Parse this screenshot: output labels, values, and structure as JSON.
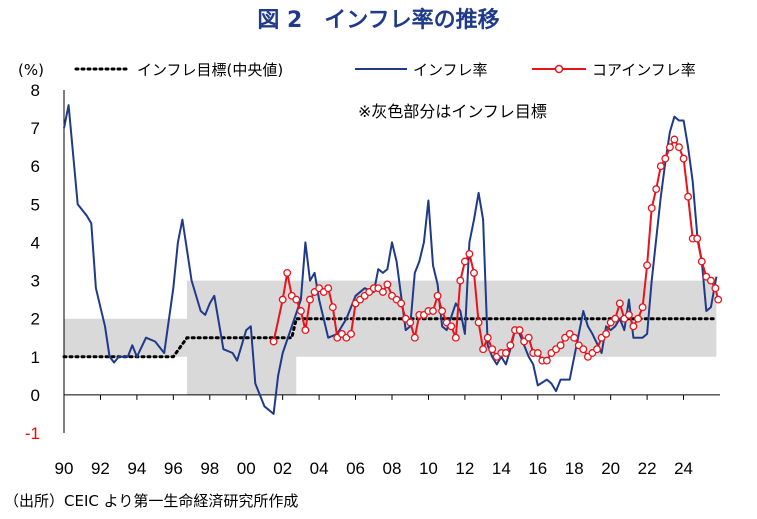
{
  "title": "図 2　インフレ率の推移",
  "source": "（出所）CEIC より第一生命経済研究所作成",
  "chart_data": {
    "type": "line",
    "title": "図 2　インフレ率の推移",
    "ylabel": "(%)",
    "ylim": [
      -1,
      8
    ],
    "yticks": [
      -1,
      0,
      1,
      2,
      3,
      4,
      5,
      6,
      7,
      8
    ],
    "xlim": [
      1990,
      2026
    ],
    "xtick_values": [
      1990,
      1992,
      1994,
      1996,
      1998,
      2000,
      2002,
      2004,
      2006,
      2008,
      2010,
      2012,
      2014,
      2016,
      2018,
      2020,
      2022,
      2024
    ],
    "xtick_labels": [
      "90",
      "92",
      "94",
      "96",
      "98",
      "00",
      "02",
      "04",
      "06",
      "08",
      "10",
      "12",
      "14",
      "16",
      "18",
      "20",
      "22",
      "24"
    ],
    "annotation": "※灰色部分はインフレ目標",
    "legend_position": "top",
    "colors": {
      "target": "#000000",
      "inflation": "#1f3a8a",
      "core": "#e8141b",
      "band": "#d9d9d9"
    },
    "target_band": [
      {
        "x": 1990.0,
        "low": 1,
        "high": 2
      },
      {
        "x": 1996.75,
        "low": 1,
        "high": 2
      },
      {
        "x": 1996.75,
        "low": 0,
        "high": 3
      },
      {
        "x": 2002.75,
        "low": 0,
        "high": 3
      },
      {
        "x": 2002.75,
        "low": 1,
        "high": 3
      },
      {
        "x": 2025.8,
        "low": 1,
        "high": 3
      }
    ],
    "series": [
      {
        "name": "インフレ目標(中央値)",
        "style": "dotted",
        "points": [
          [
            1990.0,
            1.0
          ],
          [
            1996.0,
            1.0
          ],
          [
            1996.75,
            1.5
          ],
          [
            2002.5,
            1.5
          ],
          [
            2002.75,
            2.0
          ],
          [
            2025.8,
            2.0
          ]
        ]
      },
      {
        "name": "インフレ率",
        "style": "line",
        "points": [
          [
            1990.0,
            7.0
          ],
          [
            1990.25,
            7.6
          ],
          [
            1990.75,
            5.0
          ],
          [
            1991.25,
            4.7
          ],
          [
            1991.5,
            4.5
          ],
          [
            1991.75,
            2.8
          ],
          [
            1992.25,
            1.8
          ],
          [
            1992.5,
            1.0
          ],
          [
            1992.75,
            0.85
          ],
          [
            1993.0,
            1.0
          ],
          [
            1993.5,
            1.0
          ],
          [
            1993.75,
            1.3
          ],
          [
            1994.0,
            1.0
          ],
          [
            1994.5,
            1.5
          ],
          [
            1995.0,
            1.4
          ],
          [
            1995.5,
            1.1
          ],
          [
            1996.0,
            2.8
          ],
          [
            1996.25,
            4.0
          ],
          [
            1996.5,
            4.6
          ],
          [
            1996.75,
            3.8
          ],
          [
            1997.0,
            3.0
          ],
          [
            1997.5,
            2.2
          ],
          [
            1997.75,
            2.1
          ],
          [
            1998.0,
            2.4
          ],
          [
            1998.25,
            2.6
          ],
          [
            1998.75,
            1.2
          ],
          [
            1999.25,
            1.1
          ],
          [
            1999.5,
            0.9
          ],
          [
            2000.0,
            1.7
          ],
          [
            2000.25,
            1.8
          ],
          [
            2000.5,
            0.3
          ],
          [
            2001.0,
            -0.3
          ],
          [
            2001.5,
            -0.5
          ],
          [
            2001.75,
            0.5
          ],
          [
            2002.0,
            1.1
          ],
          [
            2002.5,
            1.8
          ],
          [
            2003.0,
            2.5
          ],
          [
            2003.25,
            4.0
          ],
          [
            2003.5,
            3.0
          ],
          [
            2003.75,
            3.2
          ],
          [
            2004.0,
            2.5
          ],
          [
            2004.5,
            1.5
          ],
          [
            2005.0,
            1.6
          ],
          [
            2005.5,
            2.0
          ],
          [
            2006.0,
            2.6
          ],
          [
            2006.5,
            2.8
          ],
          [
            2007.0,
            2.7
          ],
          [
            2007.25,
            3.3
          ],
          [
            2007.5,
            3.2
          ],
          [
            2007.75,
            3.3
          ],
          [
            2008.0,
            4.0
          ],
          [
            2008.25,
            3.5
          ],
          [
            2008.5,
            2.6
          ],
          [
            2008.75,
            1.7
          ],
          [
            2009.0,
            1.8
          ],
          [
            2009.25,
            3.2
          ],
          [
            2009.5,
            3.5
          ],
          [
            2009.75,
            4.0
          ],
          [
            2010.0,
            5.1
          ],
          [
            2010.25,
            3.4
          ],
          [
            2010.5,
            2.9
          ],
          [
            2010.75,
            1.8
          ],
          [
            2011.0,
            1.7
          ],
          [
            2011.5,
            2.4
          ],
          [
            2011.75,
            2.2
          ],
          [
            2012.0,
            1.6
          ],
          [
            2012.25,
            4.0
          ],
          [
            2012.5,
            4.6
          ],
          [
            2012.75,
            5.3
          ],
          [
            2013.0,
            4.6
          ],
          [
            2013.25,
            1.3
          ],
          [
            2013.5,
            1.0
          ],
          [
            2013.75,
            0.8
          ],
          [
            2014.0,
            1.0
          ],
          [
            2014.25,
            0.8
          ],
          [
            2014.5,
            1.2
          ],
          [
            2014.75,
            1.7
          ],
          [
            2015.0,
            1.6
          ],
          [
            2015.5,
            1.0
          ],
          [
            2015.75,
            0.8
          ],
          [
            2016.0,
            0.25
          ],
          [
            2016.5,
            0.4
          ],
          [
            2016.75,
            0.3
          ],
          [
            2017.0,
            0.1
          ],
          [
            2017.25,
            0.4
          ],
          [
            2017.75,
            0.4
          ],
          [
            2018.25,
            1.6
          ],
          [
            2018.5,
            2.2
          ],
          [
            2018.75,
            1.8
          ],
          [
            2019.0,
            1.6
          ],
          [
            2019.5,
            1.1
          ],
          [
            2019.75,
            1.8
          ],
          [
            2020.0,
            1.7
          ],
          [
            2020.25,
            1.8
          ],
          [
            2020.5,
            2.0
          ],
          [
            2020.75,
            1.7
          ],
          [
            2021.0,
            2.5
          ],
          [
            2021.25,
            1.5
          ],
          [
            2021.5,
            1.5
          ],
          [
            2021.75,
            1.5
          ],
          [
            2022.0,
            1.6
          ],
          [
            2022.25,
            3.0
          ],
          [
            2022.75,
            5.2
          ],
          [
            2023.0,
            6.1
          ],
          [
            2023.25,
            6.9
          ],
          [
            2023.5,
            7.3
          ],
          [
            2023.75,
            7.2
          ],
          [
            2024.0,
            7.2
          ],
          [
            2024.25,
            6.5
          ],
          [
            2024.5,
            5.6
          ],
          [
            2024.75,
            4.2
          ],
          [
            2025.0,
            3.5
          ],
          [
            2025.25,
            2.2
          ],
          [
            2025.5,
            2.3
          ],
          [
            2025.8,
            3.1
          ]
        ]
      },
      {
        "name": "コアインフレ率",
        "style": "line-markers",
        "points": [
          [
            2001.5,
            1.4
          ],
          [
            2002.0,
            2.5
          ],
          [
            2002.25,
            3.2
          ],
          [
            2002.5,
            2.6
          ],
          [
            2002.75,
            2.5
          ],
          [
            2003.0,
            2.2
          ],
          [
            2003.25,
            1.7
          ],
          [
            2003.5,
            2.5
          ],
          [
            2003.75,
            2.7
          ],
          [
            2004.0,
            2.8
          ],
          [
            2004.25,
            2.7
          ],
          [
            2004.5,
            2.8
          ],
          [
            2004.75,
            2.3
          ],
          [
            2005.0,
            1.5
          ],
          [
            2005.25,
            1.6
          ],
          [
            2005.5,
            1.5
          ],
          [
            2005.75,
            1.6
          ],
          [
            2006.0,
            2.4
          ],
          [
            2006.25,
            2.5
          ],
          [
            2006.5,
            2.6
          ],
          [
            2006.75,
            2.7
          ],
          [
            2007.0,
            2.8
          ],
          [
            2007.25,
            2.8
          ],
          [
            2007.5,
            2.7
          ],
          [
            2007.75,
            2.9
          ],
          [
            2008.0,
            2.6
          ],
          [
            2008.25,
            2.5
          ],
          [
            2008.5,
            2.4
          ],
          [
            2008.75,
            2.0
          ],
          [
            2009.0,
            1.9
          ],
          [
            2009.25,
            1.5
          ],
          [
            2009.5,
            2.1
          ],
          [
            2009.75,
            2.1
          ],
          [
            2010.0,
            2.2
          ],
          [
            2010.25,
            2.2
          ],
          [
            2010.5,
            2.6
          ],
          [
            2010.75,
            2.2
          ],
          [
            2011.0,
            1.9
          ],
          [
            2011.25,
            1.8
          ],
          [
            2011.5,
            1.5
          ],
          [
            2011.75,
            3.0
          ],
          [
            2012.0,
            3.5
          ],
          [
            2012.25,
            3.7
          ],
          [
            2012.5,
            3.2
          ],
          [
            2012.75,
            1.9
          ],
          [
            2013.0,
            1.2
          ],
          [
            2013.25,
            1.5
          ],
          [
            2013.5,
            1.2
          ],
          [
            2013.75,
            1.0
          ],
          [
            2014.0,
            1.1
          ],
          [
            2014.25,
            1.1
          ],
          [
            2014.5,
            1.3
          ],
          [
            2014.75,
            1.7
          ],
          [
            2015.0,
            1.7
          ],
          [
            2015.25,
            1.4
          ],
          [
            2015.5,
            1.5
          ],
          [
            2015.75,
            1.1
          ],
          [
            2016.0,
            1.1
          ],
          [
            2016.25,
            0.9
          ],
          [
            2016.5,
            0.9
          ],
          [
            2016.75,
            1.1
          ],
          [
            2017.0,
            1.2
          ],
          [
            2017.25,
            1.3
          ],
          [
            2017.5,
            1.5
          ],
          [
            2017.75,
            1.6
          ],
          [
            2018.0,
            1.5
          ],
          [
            2018.25,
            1.3
          ],
          [
            2018.5,
            1.2
          ],
          [
            2018.75,
            1.0
          ],
          [
            2019.0,
            1.1
          ],
          [
            2019.25,
            1.2
          ],
          [
            2019.5,
            1.5
          ],
          [
            2019.75,
            1.6
          ],
          [
            2020.0,
            1.9
          ],
          [
            2020.25,
            2.0
          ],
          [
            2020.5,
            2.4
          ],
          [
            2020.75,
            2.0
          ],
          [
            2021.0,
            2.1
          ],
          [
            2021.25,
            1.8
          ],
          [
            2021.5,
            2.0
          ],
          [
            2021.75,
            2.3
          ],
          [
            2022.0,
            3.4
          ],
          [
            2022.25,
            4.9
          ],
          [
            2022.5,
            5.4
          ],
          [
            2022.75,
            6.0
          ],
          [
            2023.0,
            6.2
          ],
          [
            2023.25,
            6.5
          ],
          [
            2023.5,
            6.7
          ],
          [
            2023.75,
            6.5
          ],
          [
            2024.0,
            6.2
          ],
          [
            2024.25,
            5.2
          ],
          [
            2024.5,
            4.1
          ],
          [
            2024.75,
            4.1
          ],
          [
            2025.0,
            3.5
          ],
          [
            2025.25,
            3.1
          ],
          [
            2025.5,
            3.0
          ],
          [
            2025.75,
            2.8
          ],
          [
            2025.9,
            2.5
          ]
        ]
      }
    ]
  }
}
